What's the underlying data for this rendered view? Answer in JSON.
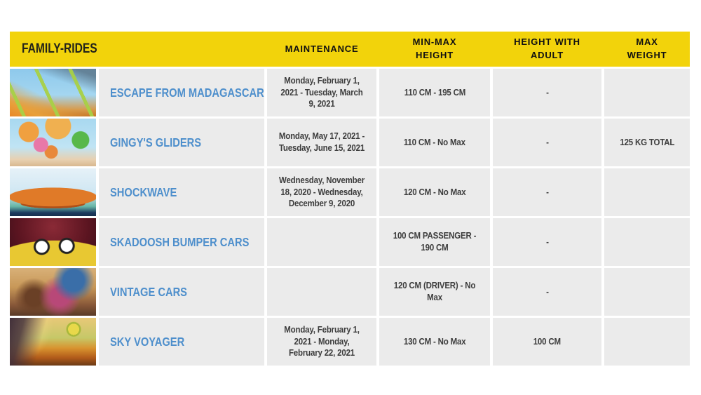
{
  "table": {
    "header": {
      "family_rides": "FAMILY-RIDES",
      "columns": [
        "MAINTENANCE",
        "MIN-MAX HEIGHT",
        "HEIGHT WITH ADULT",
        "MAX WEIGHT"
      ]
    },
    "rides": [
      {
        "name": "ESCAPE FROM MADAGASCAR",
        "maintenance": "Monday, February 1, 2021 - Tuesday, March 9, 2021",
        "min_max_height": "110 CM - 195 CM",
        "height_with_adult": "-",
        "max_weight": "",
        "image": "Roller coaster with orange track and lime green supports under a blue sky"
      },
      {
        "name": "GINGY'S GLIDERS",
        "maintenance": "Monday, May 17, 2021 - Tuesday, June 15, 2021",
        "min_max_height": "110 CM - No Max",
        "height_with_adult": "-",
        "max_weight": "125 KG TOTAL",
        "image": "Colorful spinning glider ride with orange and pink arms against a blue sky"
      },
      {
        "name": "SHOCKWAVE",
        "maintenance": "Wednesday, November 18, 2020 - Wednesday, December 9, 2020",
        "min_max_height": "120 CM - No Max",
        "height_with_adult": "-",
        "max_weight": "",
        "image": "Riders standing on a tilted orange disc ride in the air"
      },
      {
        "name": "SKADOOSH BUMPER CARS",
        "maintenance": "",
        "min_max_height": "100 CM PASSENGER - 190 CM",
        "height_with_adult": "-",
        "max_weight": "",
        "image": "Families riding a yellow dragon-faced bumper car with big white eyes in a dark arena"
      },
      {
        "name": "VINTAGE CARS",
        "maintenance": "",
        "min_max_height": "120 CM (DRIVER) - No Max",
        "height_with_adult": "-",
        "max_weight": "",
        "image": "Family riding together in a vintage car"
      },
      {
        "name": "SKY VOYAGER",
        "maintenance": "Monday, February 1, 2021 - Monday, February 22, 2021",
        "min_max_height": "130 CM - No Max",
        "height_with_adult": "100 CM",
        "max_weight": "",
        "image": "Hot air balloon floating over an orange flower field at sunset with silhouetted riders"
      }
    ]
  },
  "colors": {
    "header_bg": "#F2D30B",
    "header_text": "#111111",
    "family_rides_text": "#23231A",
    "ride_name_blue": "#4E8FCC",
    "row_bg": "#EBEBEB",
    "cell_text": "#3D3D3D",
    "page_bg": "#FFFFFF"
  }
}
